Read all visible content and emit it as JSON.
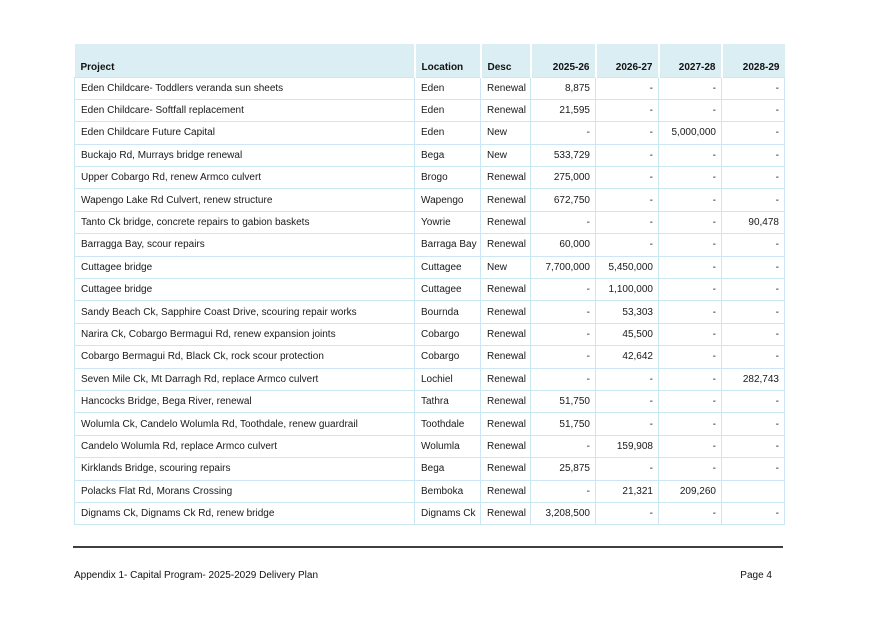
{
  "table": {
    "columns": [
      "Project",
      "Location",
      "Desc",
      "2025-26",
      "2026-27",
      "2027-28",
      "2028-29"
    ],
    "rows": [
      {
        "project": "Eden Childcare- Toddlers veranda sun sheets",
        "location": "Eden",
        "desc": "Renewal",
        "values": [
          "8,875",
          "-",
          "-",
          "-"
        ]
      },
      {
        "project": "Eden Childcare- Softfall replacement",
        "location": "Eden",
        "desc": "Renewal",
        "values": [
          "21,595",
          "-",
          "-",
          "-"
        ]
      },
      {
        "project": "Eden Childcare Future Capital",
        "location": "Eden",
        "desc": "New",
        "values": [
          "-",
          "-",
          "5,000,000",
          "-"
        ]
      },
      {
        "project": "Buckajo Rd, Murrays bridge renewal",
        "location": "Bega",
        "desc": "New",
        "values": [
          "533,729",
          "-",
          "-",
          "-"
        ]
      },
      {
        "project": "Upper Cobargo Rd, renew Armco culvert",
        "location": "Brogo",
        "desc": "Renewal",
        "values": [
          "275,000",
          "-",
          "-",
          "-"
        ]
      },
      {
        "project": "Wapengo Lake Rd Culvert, renew structure",
        "location": "Wapengo",
        "desc": "Renewal",
        "values": [
          "672,750",
          "-",
          "-",
          "-"
        ]
      },
      {
        "project": "Tanto Ck bridge, concrete repairs to gabion baskets",
        "location": "Yowrie",
        "desc": "Renewal",
        "values": [
          "-",
          "-",
          "-",
          "90,478"
        ]
      },
      {
        "project": "Barragga Bay, scour repairs",
        "location": "Barraga Bay",
        "desc": "Renewal",
        "values": [
          "60,000",
          "-",
          "-",
          "-"
        ]
      },
      {
        "project": "Cuttagee bridge",
        "location": "Cuttagee",
        "desc": "New",
        "values": [
          "7,700,000",
          "5,450,000",
          "-",
          "-"
        ]
      },
      {
        "project": "Cuttagee bridge",
        "location": "Cuttagee",
        "desc": "Renewal",
        "values": [
          "-",
          "1,100,000",
          "-",
          "-"
        ]
      },
      {
        "project": "Sandy Beach Ck, Sapphire Coast Drive, scouring repair works",
        "location": "Bournda",
        "desc": "Renewal",
        "values": [
          "-",
          "53,303",
          "-",
          "-"
        ]
      },
      {
        "project": "Narira Ck, Cobargo Bermagui Rd, renew expansion joints",
        "location": "Cobargo",
        "desc": "Renewal",
        "values": [
          "-",
          "45,500",
          "-",
          "-"
        ]
      },
      {
        "project": "Cobargo Bermagui Rd, Black Ck, rock scour protection",
        "location": "Cobargo",
        "desc": "Renewal",
        "values": [
          "-",
          "42,642",
          "-",
          "-"
        ]
      },
      {
        "project": "Seven Mile Ck, Mt Darragh Rd, replace Armco culvert",
        "location": "Lochiel",
        "desc": "Renewal",
        "values": [
          "-",
          "-",
          "-",
          "282,743"
        ]
      },
      {
        "project": "Hancocks Bridge, Bega River, renewal",
        "location": "Tathra",
        "desc": "Renewal",
        "values": [
          "51,750",
          "-",
          "-",
          "-"
        ]
      },
      {
        "project": "Wolumla Ck, Candelo Wolumla Rd, Toothdale, renew guardrail",
        "location": "Toothdale",
        "desc": "Renewal",
        "values": [
          "51,750",
          "-",
          "-",
          "-"
        ]
      },
      {
        "project": "Candelo Wolumla Rd, replace Armco culvert",
        "location": "Wolumla",
        "desc": "Renewal",
        "values": [
          "-",
          "159,908",
          "-",
          "-"
        ]
      },
      {
        "project": "Kirklands Bridge, scouring repairs",
        "location": "Bega",
        "desc": "Renewal",
        "values": [
          "25,875",
          "-",
          "-",
          "-"
        ]
      },
      {
        "project": "Polacks Flat Rd, Morans Crossing",
        "location": "Bemboka",
        "desc": "Renewal",
        "values": [
          "-",
          "21,321",
          "209,260",
          ""
        ]
      },
      {
        "project": "Dignams Ck, Dignams Ck Rd, renew bridge",
        "location": "Dignams Ck",
        "desc": "Renewal",
        "values": [
          "3,208,500",
          "-",
          "-",
          "-"
        ]
      }
    ]
  },
  "footer": {
    "left": "Appendix 1- Capital Program- 2025-2029 Delivery Plan",
    "right": "Page 4"
  },
  "colors": {
    "header_fill": "#daeef3",
    "grid_line": "#cbe7f3",
    "footer_rule": "#3f3f3f",
    "text": "#1a1a1a",
    "page_background": "#ffffff"
  }
}
